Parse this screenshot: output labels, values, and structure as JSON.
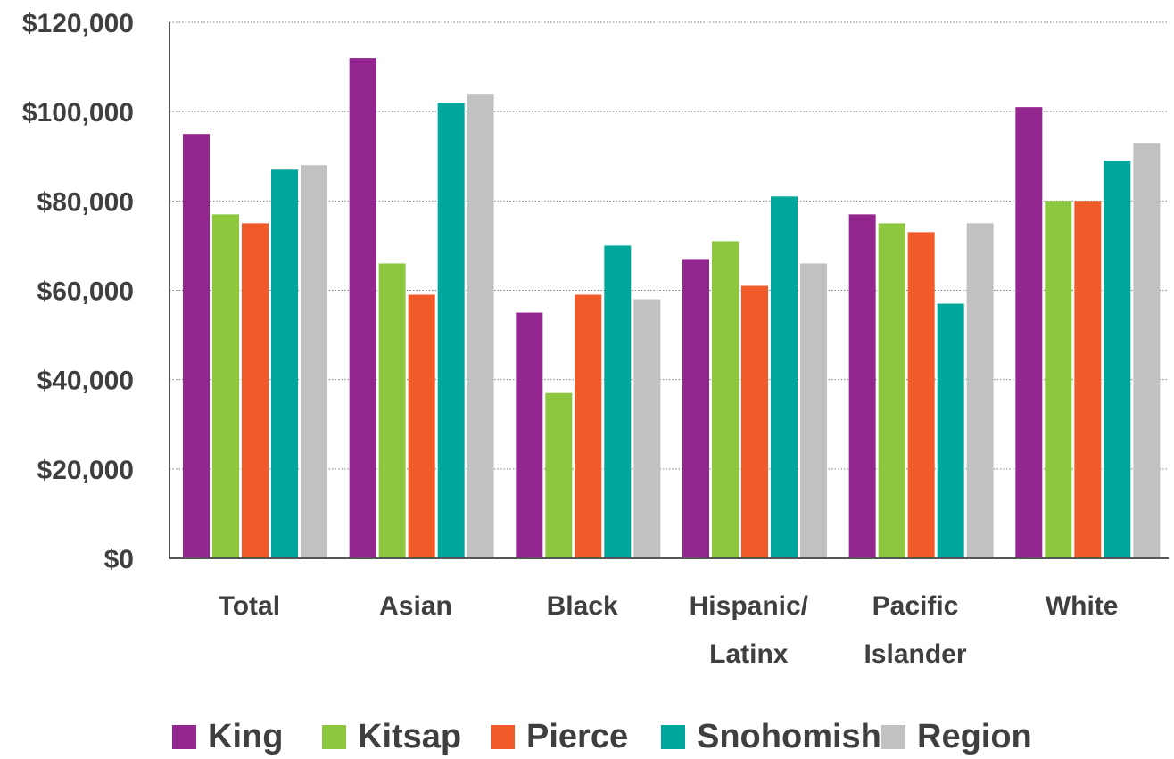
{
  "chart_data": {
    "type": "bar",
    "categories": [
      [
        "Total"
      ],
      [
        "Asian"
      ],
      [
        "Black"
      ],
      [
        "Hispanic/",
        "Latinx"
      ],
      [
        "Pacific",
        "Islander"
      ],
      [
        "White"
      ]
    ],
    "series": [
      {
        "name": "King",
        "color": "#93278f",
        "values": [
          95000,
          112000,
          55000,
          67000,
          77000,
          101000
        ]
      },
      {
        "name": "Kitsap",
        "color": "#8dc63f",
        "values": [
          77000,
          66000,
          37000,
          71000,
          75000,
          80000
        ]
      },
      {
        "name": "Pierce",
        "color": "#f15a29",
        "values": [
          75000,
          59000,
          59000,
          61000,
          73000,
          80000
        ]
      },
      {
        "name": "Snohomish",
        "color": "#00a79d",
        "values": [
          87000,
          102000,
          70000,
          81000,
          57000,
          89000
        ]
      },
      {
        "name": "Region",
        "color": "#c1c1c1",
        "values": [
          88000,
          104000,
          58000,
          66000,
          75000,
          93000
        ]
      }
    ],
    "y_ticks": [
      "$0",
      "$20,000",
      "$40,000",
      "$60,000",
      "$80,000",
      "$100,000",
      "$120,000"
    ],
    "ylim": [
      0,
      120000
    ],
    "grid": true,
    "legend_position": "bottom",
    "title": "",
    "xlabel": "",
    "ylabel": ""
  }
}
